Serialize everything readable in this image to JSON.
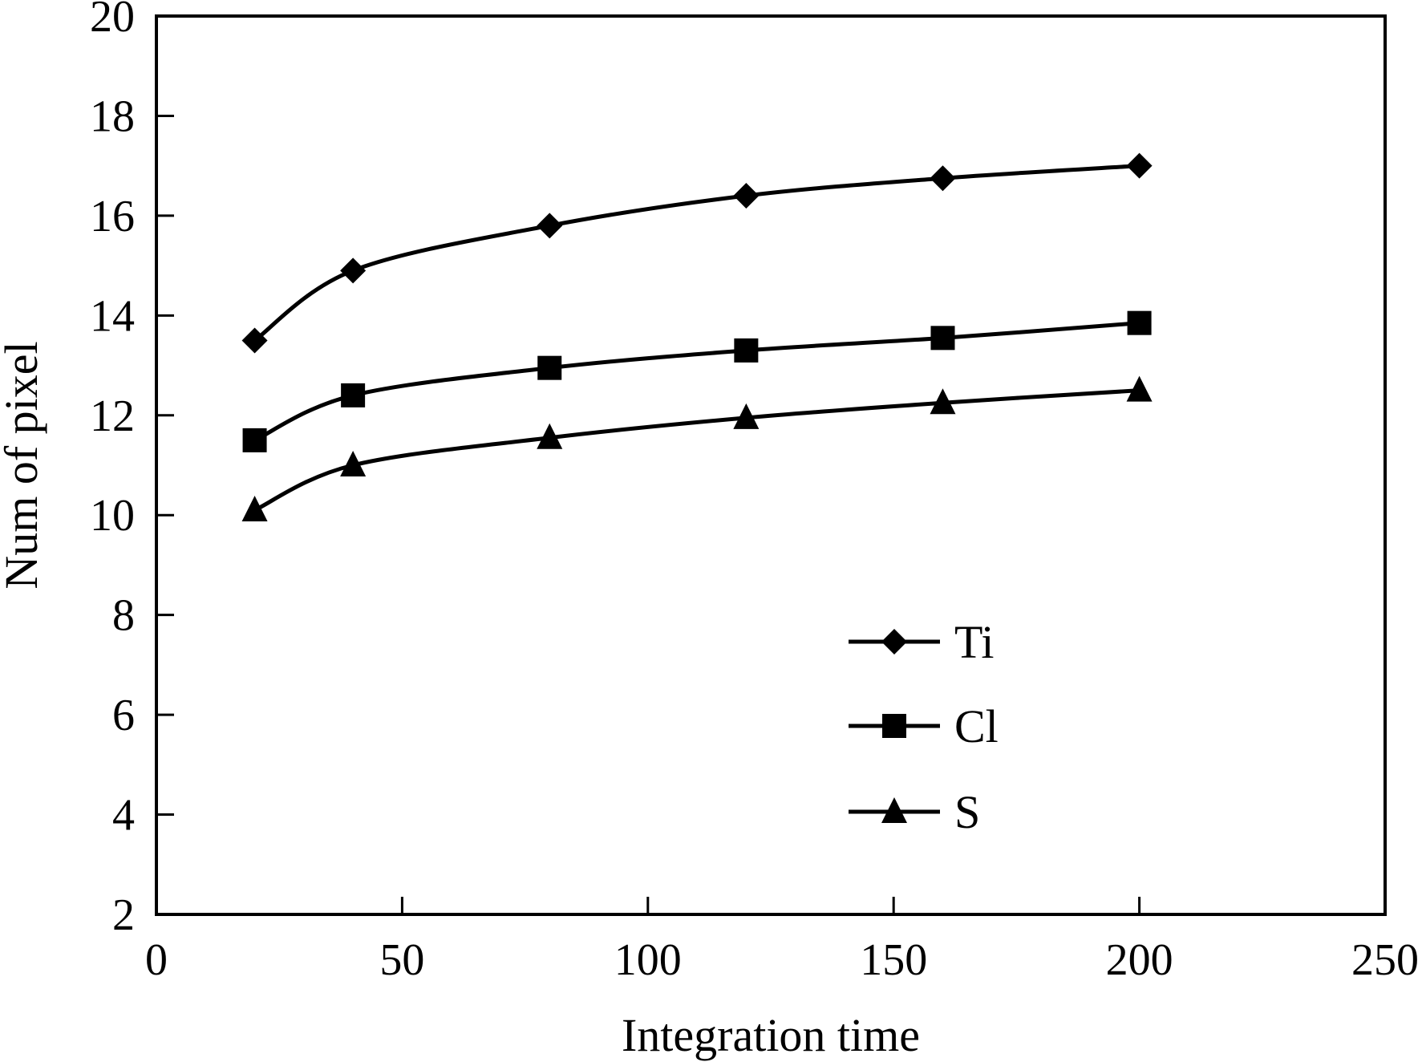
{
  "chart_data": {
    "type": "line",
    "title": "",
    "xlabel": "Integration time",
    "ylabel": "Num of pixel",
    "xlim": [
      0,
      250
    ],
    "ylim": [
      2,
      20
    ],
    "xticks": [
      0,
      50,
      100,
      150,
      200,
      250
    ],
    "yticks": [
      2,
      4,
      6,
      8,
      10,
      12,
      14,
      16,
      18,
      20
    ],
    "grid": false,
    "legend_position": "bottom-right",
    "x": [
      20,
      40,
      80,
      120,
      160,
      200
    ],
    "series": [
      {
        "name": "Ti",
        "marker": "diamond",
        "values": [
          13.5,
          14.9,
          15.8,
          16.4,
          16.75,
          17.0
        ]
      },
      {
        "name": "Cl",
        "marker": "square",
        "values": [
          11.5,
          12.4,
          12.95,
          13.3,
          13.55,
          13.85
        ]
      },
      {
        "name": "S",
        "marker": "triangle",
        "values": [
          10.1,
          11.0,
          11.55,
          11.95,
          12.25,
          12.5
        ]
      }
    ],
    "colors": {
      "line": "#000000",
      "background": "#ffffff"
    }
  }
}
